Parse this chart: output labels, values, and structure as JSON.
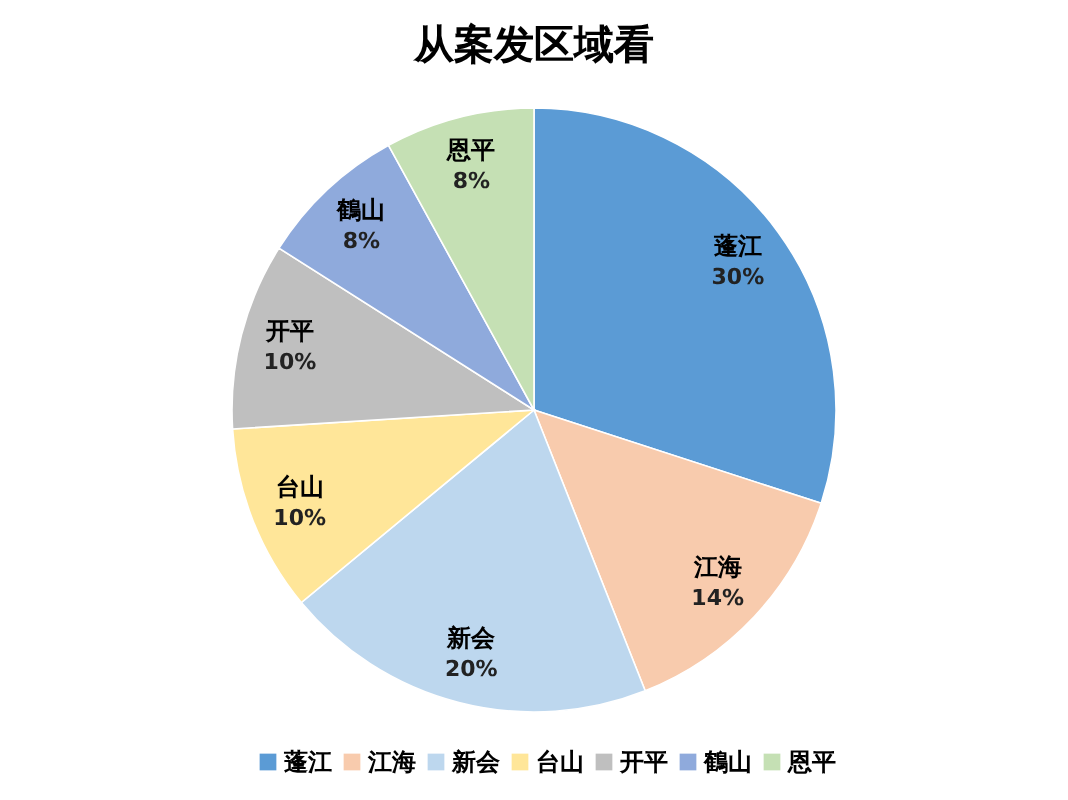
{
  "chart_data": {
    "type": "pie",
    "title": "从案发区域看",
    "categories": [
      "蓬江",
      "江海",
      "新会",
      "台山",
      "开平",
      "鶴山",
      "恩平"
    ],
    "values": [
      30,
      14,
      20,
      10,
      10,
      8,
      8
    ],
    "colors": [
      "#5b9bd5",
      "#f8cbad",
      "#bdd7ee",
      "#ffe699",
      "#bfbfbf",
      "#8faadc",
      "#c5e0b4"
    ],
    "value_labels": [
      "30%",
      "14%",
      "20%",
      "10%",
      "10%",
      "8%",
      "8%"
    ],
    "legend": "bottom"
  }
}
